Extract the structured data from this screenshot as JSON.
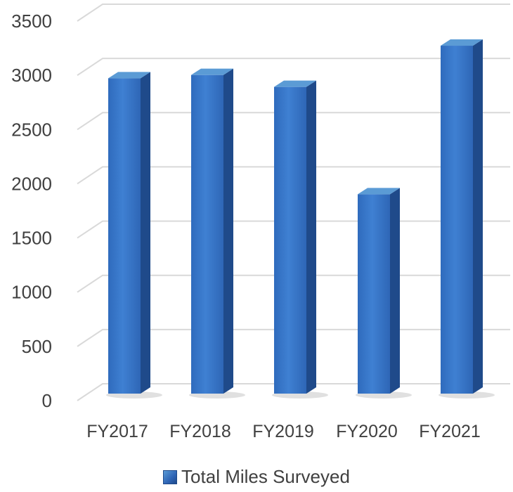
{
  "chart_data": {
    "type": "bar",
    "style": "3d-column",
    "title": "",
    "xlabel": "",
    "ylabel": "",
    "categories": [
      "FY2017",
      "FY2018",
      "FY2019",
      "FY2020",
      "FY2021"
    ],
    "series": [
      {
        "name": "Total Miles Surveyed",
        "values": [
          2960,
          2990,
          2880,
          1890,
          3260
        ]
      }
    ],
    "ylim": [
      0,
      3500
    ],
    "yticks": [
      "0",
      "500",
      "1000",
      "1500",
      "2000",
      "2500",
      "3000",
      "3500"
    ],
    "grid": true,
    "legend_position": "bottom",
    "colors": {
      "bar_front": "#3a78c9",
      "bar_side": "#1f4a8a",
      "bar_top": "#5b9bd5",
      "grid": "#d9d9d9",
      "text": "#404040"
    }
  }
}
